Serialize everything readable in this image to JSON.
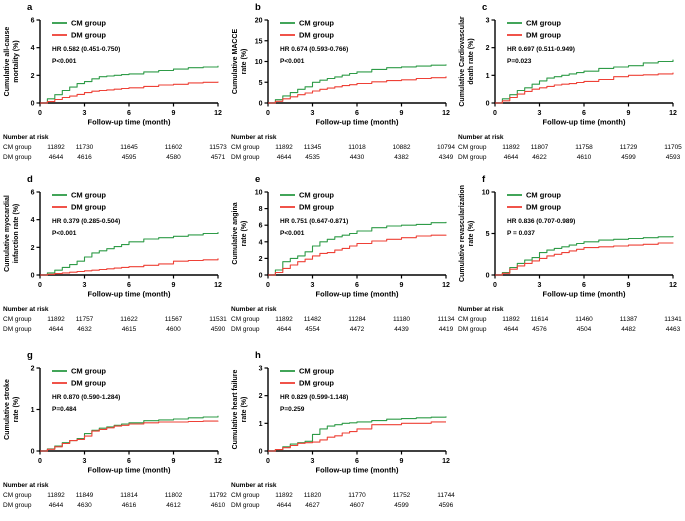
{
  "figure": {
    "colors": {
      "cm_green": "#2e9b47",
      "dm_red": "#ee4036",
      "axis_black": "#000000"
    },
    "legend_labels": [
      "CM group",
      "DM group"
    ],
    "x_label": "Follow-up time (month)",
    "x_ticks": [
      0,
      3,
      6,
      9,
      12
    ],
    "x_range": [
      0,
      12
    ],
    "number_at_risk_heading": "Number at risk",
    "risk_row_labels": [
      "CM group",
      "DM group"
    ]
  },
  "chart_data": [
    {
      "id": "a",
      "type": "line",
      "ylabel_lines": [
        "Cumulative all-cause",
        "mortality (%)"
      ],
      "ylim": [
        0,
        6
      ],
      "yticks": [
        0,
        2,
        4,
        6
      ],
      "hr": "HR 0.582 (0.451-0.750)",
      "p": "P<0.001",
      "x": [
        0,
        0.5,
        1,
        1.5,
        2,
        2.5,
        3,
        3.5,
        4,
        4.5,
        5,
        5.5,
        6,
        7,
        8,
        9,
        10,
        11,
        12
      ],
      "series": [
        {
          "name": "CM group",
          "values": [
            0,
            0.3,
            0.6,
            0.9,
            1.15,
            1.4,
            1.55,
            1.75,
            1.9,
            1.95,
            2.0,
            2.05,
            2.1,
            2.25,
            2.35,
            2.45,
            2.55,
            2.6,
            2.7
          ]
        },
        {
          "name": "DM group",
          "values": [
            0,
            0.1,
            0.25,
            0.4,
            0.5,
            0.62,
            0.75,
            0.85,
            0.9,
            0.95,
            1.0,
            1.05,
            1.1,
            1.2,
            1.3,
            1.35,
            1.45,
            1.5,
            1.55
          ]
        }
      ],
      "number_at_risk": [
        [
          11892,
          11730,
          11645,
          11602,
          11573
        ],
        [
          4644,
          4616,
          4595,
          4580,
          4571
        ]
      ]
    },
    {
      "id": "b",
      "type": "line",
      "ylabel_lines": [
        "Cumulative MACCE",
        "rate (%)"
      ],
      "ylim": [
        0,
        20
      ],
      "yticks": [
        0,
        5,
        10,
        15,
        20
      ],
      "hr": "HR 0.674 (0.593-0.766)",
      "p": "P<0.001",
      "x": [
        0,
        0.5,
        1,
        1.5,
        2,
        2.5,
        3,
        3.5,
        4,
        4.5,
        5,
        5.5,
        6,
        7,
        8,
        9,
        10,
        11,
        12
      ],
      "series": [
        {
          "name": "CM group",
          "values": [
            0,
            0.8,
            1.7,
            2.5,
            3.3,
            3.9,
            5.0,
            5.5,
            5.9,
            6.3,
            6.7,
            7.1,
            7.5,
            8.1,
            8.5,
            8.7,
            8.9,
            9.1,
            9.3
          ]
        },
        {
          "name": "DM group",
          "values": [
            0,
            0.4,
            1.0,
            1.5,
            2.0,
            2.4,
            2.9,
            3.3,
            3.6,
            3.9,
            4.2,
            4.4,
            4.7,
            5.1,
            5.4,
            5.6,
            5.9,
            6.1,
            6.4
          ]
        }
      ],
      "number_at_risk": [
        [
          11892,
          11345,
          11018,
          10882,
          10794
        ],
        [
          4644,
          4535,
          4430,
          4382,
          4349
        ]
      ]
    },
    {
      "id": "c",
      "type": "line",
      "ylabel_lines": [
        "Cumulative Cardiovascular",
        "death rate (%)"
      ],
      "ylim": [
        0,
        3
      ],
      "yticks": [
        0,
        1,
        2,
        3
      ],
      "hr": "HR 0.697 (0.511-0.949)",
      "p": "P=0.023",
      "x": [
        0,
        0.5,
        1,
        1.5,
        2,
        2.5,
        3,
        3.5,
        4,
        4.5,
        5,
        5.5,
        6,
        7,
        8,
        9,
        10,
        11,
        12
      ],
      "series": [
        {
          "name": "CM group",
          "values": [
            0,
            0.15,
            0.3,
            0.45,
            0.55,
            0.68,
            0.8,
            0.9,
            0.95,
            1.0,
            1.05,
            1.1,
            1.15,
            1.25,
            1.3,
            1.35,
            1.45,
            1.5,
            1.57
          ]
        },
        {
          "name": "DM group",
          "values": [
            0,
            0.08,
            0.2,
            0.32,
            0.42,
            0.5,
            0.55,
            0.6,
            0.65,
            0.68,
            0.7,
            0.74,
            0.78,
            0.85,
            0.95,
            1.0,
            1.02,
            1.05,
            1.1
          ]
        }
      ],
      "number_at_risk": [
        [
          11892,
          11807,
          11758,
          11729,
          11705
        ],
        [
          4644,
          4622,
          4610,
          4599,
          4593
        ]
      ]
    },
    {
      "id": "d",
      "type": "line",
      "ylabel_lines": [
        "Cumulative myocardial",
        "infarction rate (%)"
      ],
      "ylim": [
        0,
        6
      ],
      "yticks": [
        0,
        2,
        4,
        6
      ],
      "hr": "HR 0.379 (0.285-0.504)",
      "p": "P<0.001",
      "x": [
        0,
        0.5,
        1,
        1.5,
        2,
        2.5,
        3,
        3.5,
        4,
        4.5,
        5,
        5.5,
        6,
        7,
        8,
        9,
        10,
        11,
        12
      ],
      "series": [
        {
          "name": "CM group",
          "values": [
            0,
            0.15,
            0.35,
            0.55,
            0.75,
            1.0,
            1.3,
            1.6,
            1.75,
            1.9,
            2.05,
            2.2,
            2.4,
            2.6,
            2.7,
            2.8,
            2.9,
            3.0,
            3.1
          ]
        },
        {
          "name": "DM group",
          "values": [
            0,
            0.05,
            0.1,
            0.15,
            0.2,
            0.25,
            0.3,
            0.35,
            0.4,
            0.45,
            0.5,
            0.55,
            0.6,
            0.7,
            0.8,
            1.0,
            1.05,
            1.1,
            1.2
          ]
        }
      ],
      "number_at_risk": [
        [
          11892,
          11757,
          11622,
          11567,
          11531
        ],
        [
          4644,
          4632,
          4615,
          4600,
          4590
        ]
      ]
    },
    {
      "id": "e",
      "type": "line",
      "ylabel_lines": [
        "Cumulative angina",
        "rate (%)"
      ],
      "ylim": [
        0,
        10
      ],
      "yticks": [
        0,
        2,
        4,
        6,
        8,
        10
      ],
      "hr": "HR 0.751 (0.647-0.871)",
      "p": "P<0.001",
      "x": [
        0,
        0.5,
        1,
        1.5,
        2,
        2.5,
        3,
        3.5,
        4,
        4.5,
        5,
        5.5,
        6,
        7,
        8,
        9,
        10,
        11,
        12
      ],
      "series": [
        {
          "name": "CM group",
          "values": [
            0,
            0.6,
            1.6,
            2.0,
            2.3,
            2.8,
            3.5,
            4.0,
            4.3,
            4.6,
            4.8,
            5.0,
            5.3,
            5.7,
            5.9,
            6.0,
            6.1,
            6.3,
            6.4
          ]
        },
        {
          "name": "DM group",
          "values": [
            0,
            0.3,
            0.8,
            1.2,
            1.6,
            1.9,
            2.3,
            2.6,
            2.7,
            3.0,
            3.2,
            3.5,
            3.8,
            4.1,
            4.3,
            4.5,
            4.7,
            4.8,
            4.85
          ]
        }
      ],
      "number_at_risk": [
        [
          11892,
          11482,
          11284,
          11180,
          11134
        ],
        [
          4644,
          4554,
          4472,
          4439,
          4419
        ]
      ]
    },
    {
      "id": "f",
      "type": "line",
      "ylabel_lines": [
        "Cumulative revascularization",
        "rate (%)"
      ],
      "ylim": [
        0,
        10
      ],
      "yticks": [
        0,
        5,
        10
      ],
      "hr": "HR 0.836 (0.707-0.989)",
      "p": "P = 0.037",
      "x": [
        0,
        0.5,
        1,
        1.5,
        2,
        2.5,
        3,
        3.5,
        4,
        4.5,
        5,
        5.5,
        6,
        7,
        8,
        9,
        10,
        11,
        12
      ],
      "series": [
        {
          "name": "CM group",
          "values": [
            0,
            0.3,
            0.9,
            1.4,
            1.8,
            2.1,
            2.7,
            3.0,
            3.2,
            3.4,
            3.6,
            3.8,
            4.0,
            4.2,
            4.3,
            4.4,
            4.5,
            4.6,
            4.7
          ]
        },
        {
          "name": "DM group",
          "values": [
            0,
            0.2,
            0.7,
            1.1,
            1.4,
            1.7,
            2.0,
            2.3,
            2.5,
            2.7,
            2.9,
            3.1,
            3.3,
            3.4,
            3.5,
            3.6,
            3.7,
            3.85,
            3.9
          ]
        }
      ],
      "number_at_risk": [
        [
          11892,
          11614,
          11460,
          11387,
          11341
        ],
        [
          4644,
          4576,
          4504,
          4482,
          4463
        ]
      ]
    },
    {
      "id": "g",
      "type": "line",
      "ylabel_lines": [
        "Cumulative stroke",
        "rate (%)"
      ],
      "ylim": [
        0,
        2
      ],
      "yticks": [
        0,
        1,
        2
      ],
      "hr": "HR 0.870 (0.590-1.284)",
      "p": "P=0.484",
      "x": [
        0,
        0.5,
        1,
        1.5,
        2,
        2.5,
        3,
        3.5,
        4,
        4.5,
        5,
        5.5,
        6,
        7,
        8,
        9,
        10,
        11,
        12
      ],
      "series": [
        {
          "name": "CM group",
          "values": [
            0,
            0.05,
            0.12,
            0.2,
            0.25,
            0.3,
            0.42,
            0.5,
            0.55,
            0.58,
            0.62,
            0.65,
            0.68,
            0.73,
            0.75,
            0.77,
            0.8,
            0.82,
            0.85
          ]
        },
        {
          "name": "DM group",
          "values": [
            0,
            0.04,
            0.1,
            0.18,
            0.25,
            0.28,
            0.36,
            0.48,
            0.52,
            0.56,
            0.6,
            0.62,
            0.65,
            0.68,
            0.7,
            0.7,
            0.71,
            0.72,
            0.73
          ]
        }
      ],
      "number_at_risk": [
        [
          11892,
          11849,
          11814,
          11802,
          11792
        ],
        [
          4644,
          4630,
          4616,
          4612,
          4610
        ]
      ]
    },
    {
      "id": "h",
      "type": "line",
      "ylabel_lines": [
        "Cumulative heart failure",
        "rate (%)"
      ],
      "ylim": [
        0,
        3
      ],
      "yticks": [
        0,
        1,
        2,
        3
      ],
      "hr": "HR 0.829 (0.599-1.148)",
      "p": "P=0.259",
      "x": [
        0,
        0.5,
        1,
        1.5,
        2,
        2.5,
        3,
        3.5,
        4,
        4.5,
        5,
        5.5,
        6,
        7,
        8,
        9,
        10,
        11,
        12
      ],
      "series": [
        {
          "name": "CM group",
          "values": [
            0,
            0.05,
            0.15,
            0.25,
            0.3,
            0.35,
            0.6,
            0.8,
            0.9,
            0.95,
            1.0,
            1.02,
            1.05,
            1.1,
            1.15,
            1.17,
            1.2,
            1.22,
            1.25
          ]
        },
        {
          "name": "DM group",
          "values": [
            0,
            0.05,
            0.12,
            0.2,
            0.28,
            0.3,
            0.32,
            0.4,
            0.5,
            0.55,
            0.65,
            0.7,
            0.8,
            0.95,
            0.95,
            1.0,
            1.0,
            1.05,
            1.05
          ]
        }
      ],
      "number_at_risk": [
        [
          11892,
          11820,
          11770,
          11752,
          11744
        ],
        [
          4644,
          4627,
          4607,
          4599,
          4596
        ]
      ]
    }
  ]
}
